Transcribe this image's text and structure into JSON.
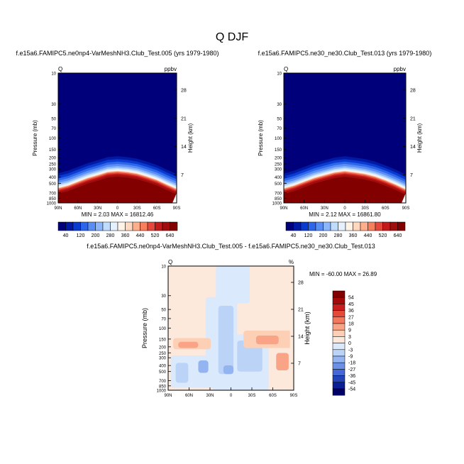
{
  "title": "Q DJF",
  "chart_data": [
    {
      "type": "heatmap",
      "title": "f.e15a6.FAMIPC5.ne0np4-VarMeshNH3.Club_Test.005 (yrs 1979-1980)",
      "left_label": "Q",
      "right_label": "ppbv",
      "ylabel": "Pressure (mb)",
      "ylabel_right": "Height (km)",
      "x_ticks": [
        "90N",
        "60N",
        "30N",
        "0",
        "30S",
        "60S",
        "90S"
      ],
      "y_ticks": [
        "10",
        "30",
        "50",
        "70",
        "100",
        "150",
        "200",
        "250",
        "300",
        "400",
        "500",
        "700",
        "850",
        "1000"
      ],
      "height_ticks": [
        "28",
        "21",
        "14",
        "7"
      ],
      "minmax": "MIN =   2.03   MAX = 16812.46",
      "colorbar_labels": [
        "40",
        "120",
        "200",
        "280",
        "360",
        "440",
        "520",
        "640"
      ],
      "boundary": [
        [
          -90,
          600
        ],
        [
          -75,
          550
        ],
        [
          -60,
          480
        ],
        [
          -45,
          420
        ],
        [
          -30,
          380
        ],
        [
          -15,
          340
        ],
        [
          0,
          330
        ],
        [
          15,
          340
        ],
        [
          30,
          360
        ],
        [
          45,
          400
        ],
        [
          60,
          450
        ],
        [
          75,
          530
        ],
        [
          90,
          620
        ]
      ]
    },
    {
      "type": "heatmap",
      "title": "f.e15a6.FAMIPC5.ne30_ne30.Club_Test.013 (yrs 1979-1980)",
      "left_label": "Q",
      "right_label": "ppbv",
      "ylabel": "Pressure (mb)",
      "ylabel_right": "Height (km)",
      "x_ticks": [
        "90N",
        "60N",
        "30N",
        "0",
        "30S",
        "60S",
        "90S"
      ],
      "y_ticks": [
        "10",
        "30",
        "50",
        "70",
        "100",
        "150",
        "200",
        "250",
        "300",
        "400",
        "500",
        "700",
        "850",
        "1000"
      ],
      "height_ticks": [
        "28",
        "21",
        "14",
        "7"
      ],
      "minmax": "MIN =   2.12   MAX = 16861.80",
      "colorbar_labels": [
        "40",
        "120",
        "200",
        "280",
        "360",
        "440",
        "520",
        "640"
      ],
      "boundary": [
        [
          -90,
          610
        ],
        [
          -75,
          550
        ],
        [
          -60,
          480
        ],
        [
          -45,
          420
        ],
        [
          -30,
          380
        ],
        [
          -15,
          345
        ],
        [
          0,
          330
        ],
        [
          15,
          345
        ],
        [
          30,
          365
        ],
        [
          45,
          400
        ],
        [
          60,
          455
        ],
        [
          75,
          530
        ],
        [
          90,
          630
        ]
      ]
    },
    {
      "type": "heatmap",
      "title": "f.e15a6.FAMIPC5.ne0np4-VarMeshNH3.Club_Test.005 - f.e15a6.FAMIPC5.ne30_ne30.Club_Test.013",
      "left_label": "Q",
      "right_label": "%",
      "ylabel": "Pressure (mb)",
      "ylabel_right": "Height (km)",
      "x_ticks": [
        "90N",
        "60N",
        "30N",
        "0",
        "30S",
        "60S",
        "90S"
      ],
      "y_ticks": [
        "10",
        "30",
        "50",
        "70",
        "100",
        "150",
        "200",
        "250",
        "300",
        "400",
        "500",
        "700",
        "850",
        "1000"
      ],
      "height_ticks": [
        "28",
        "21",
        "14",
        "7"
      ],
      "minmax": "MIN = -60.00   MAX =  26.89",
      "colorbar_labels": [
        "54",
        "45",
        "36",
        "27",
        "18",
        "9",
        "3",
        "0",
        "-3",
        "-9",
        "-18",
        "-27",
        "-36",
        "-45",
        "-54"
      ]
    }
  ],
  "colors": {
    "sequential": [
      "#00007a",
      "#001aa6",
      "#0a3bd0",
      "#2e66ea",
      "#5a8ef5",
      "#8cb6fb",
      "#bfdcff",
      "#e6f1ff",
      "#fff3e8",
      "#ffd8bf",
      "#ffae8c",
      "#f77f5e",
      "#e3483a",
      "#c41a1a",
      "#a00d0d",
      "#820000"
    ],
    "diverging": [
      "#820000",
      "#a50a0a",
      "#c81e1e",
      "#e34a3a",
      "#f2795e",
      "#f9a487",
      "#fdd0b6",
      "#fde9dc",
      "#dae9fb",
      "#bad3f7",
      "#93b4f1",
      "#6b90e6",
      "#4468d6",
      "#2244b8",
      "#0a1f93",
      "#000066"
    ]
  }
}
